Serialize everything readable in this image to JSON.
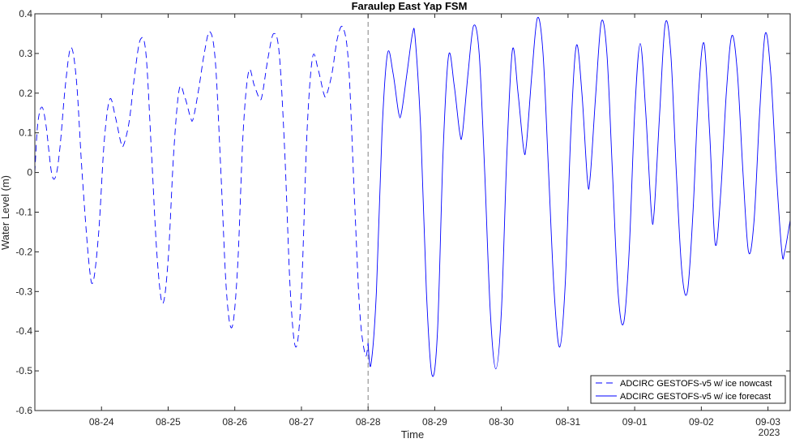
{
  "chart_data": {
    "type": "line",
    "title": "Faraulep East Yap FSM",
    "xlabel": "Time",
    "ylabel": "Water Level (m)",
    "ylim": [
      -0.6,
      0.4
    ],
    "xlim": [
      "2023-08-23 00:00",
      "2023-09-03 08:00"
    ],
    "yticks": [
      -0.6,
      -0.5,
      -0.4,
      -0.3,
      -0.2,
      -0.1,
      0,
      0.1,
      0.2,
      0.3,
      0.4
    ],
    "ytick_labels": [
      "-0.6",
      "-0.5",
      "-0.4",
      "-0.3",
      "-0.2",
      "-0.1",
      "0",
      "0.1",
      "0.2",
      "0.3",
      "0.4"
    ],
    "xticks": [
      "2023-08-24",
      "2023-08-25",
      "2023-08-26",
      "2023-08-27",
      "2023-08-28",
      "2023-08-29",
      "2023-08-30",
      "2023-08-31",
      "2023-09-01",
      "2023-09-02",
      "2023-09-03"
    ],
    "xtick_labels": [
      "08-24",
      "08-25",
      "08-26",
      "08-27",
      "08-28",
      "08-29",
      "08-30",
      "08-31",
      "09-01",
      "09-02",
      "09-03"
    ],
    "x_secondary_label": "2023",
    "nowcast_forecast_boundary": "2023-08-28 00:00",
    "grid": false,
    "legend_position": "bottom-right",
    "colors": {
      "series": "#0000ff",
      "boundary": "#808080",
      "axes": "#262626"
    },
    "series": [
      {
        "name": "ADCIRC GESTOFS-v5 w/ ice nowcast",
        "style": "dashed",
        "points": [
          [
            "2023-08-23 00:00",
            0.0
          ],
          [
            "2023-08-23 01:00",
            0.12
          ],
          [
            "2023-08-23 02:30",
            0.165
          ],
          [
            "2023-08-23 04:00",
            0.12
          ],
          [
            "2023-08-23 06:00",
            0.0
          ],
          [
            "2023-08-23 07:30",
            -0.01
          ],
          [
            "2023-08-23 09:00",
            0.06
          ],
          [
            "2023-08-23 11:00",
            0.22
          ],
          [
            "2023-08-23 13:00",
            0.315
          ],
          [
            "2023-08-23 15:00",
            0.23
          ],
          [
            "2023-08-23 17:00",
            0.0
          ],
          [
            "2023-08-23 19:30",
            -0.23
          ],
          [
            "2023-08-23 21:00",
            -0.275
          ],
          [
            "2023-08-23 23:00",
            -0.15
          ],
          [
            "2023-08-24 01:00",
            0.08
          ],
          [
            "2023-08-24 03:00",
            0.185
          ],
          [
            "2023-08-24 05:00",
            0.14
          ],
          [
            "2023-08-24 07:00",
            0.075
          ],
          [
            "2023-08-24 08:00",
            0.07
          ],
          [
            "2023-08-24 10:00",
            0.13
          ],
          [
            "2023-08-24 12:00",
            0.25
          ],
          [
            "2023-08-24 14:00",
            0.335
          ],
          [
            "2023-08-24 16:00",
            0.3
          ],
          [
            "2023-08-24 18:00",
            0.05
          ],
          [
            "2023-08-24 20:00",
            -0.21
          ],
          [
            "2023-08-24 22:00",
            -0.33
          ],
          [
            "2023-08-25 00:00",
            -0.22
          ],
          [
            "2023-08-25 02:00",
            0.05
          ],
          [
            "2023-08-25 04:00",
            0.21
          ],
          [
            "2023-08-25 06:00",
            0.19
          ],
          [
            "2023-08-25 08:00",
            0.14
          ],
          [
            "2023-08-25 09:00",
            0.135
          ],
          [
            "2023-08-25 11:00",
            0.21
          ],
          [
            "2023-08-25 13:00",
            0.3
          ],
          [
            "2023-08-25 15:00",
            0.355
          ],
          [
            "2023-08-25 17:00",
            0.28
          ],
          [
            "2023-08-25 19:00",
            0.0
          ],
          [
            "2023-08-25 21:00",
            -0.3
          ],
          [
            "2023-08-25 23:00",
            -0.39
          ],
          [
            "2023-08-26 01:00",
            -0.24
          ],
          [
            "2023-08-26 03:00",
            0.1
          ],
          [
            "2023-08-26 05:00",
            0.255
          ],
          [
            "2023-08-26 07:00",
            0.22
          ],
          [
            "2023-08-26 09:00",
            0.185
          ],
          [
            "2023-08-26 10:00",
            0.2
          ],
          [
            "2023-08-26 12:00",
            0.29
          ],
          [
            "2023-08-26 14:00",
            0.35
          ],
          [
            "2023-08-26 16:00",
            0.3
          ],
          [
            "2023-08-26 18:00",
            0.05
          ],
          [
            "2023-08-26 20:00",
            -0.3
          ],
          [
            "2023-08-26 22:00",
            -0.44
          ],
          [
            "2023-08-27 00:00",
            -0.3
          ],
          [
            "2023-08-27 02:00",
            0.1
          ],
          [
            "2023-08-27 04:00",
            0.29
          ],
          [
            "2023-08-27 06:00",
            0.26
          ],
          [
            "2023-08-27 08:00",
            0.2
          ],
          [
            "2023-08-27 09:00",
            0.195
          ],
          [
            "2023-08-27 11:00",
            0.25
          ],
          [
            "2023-08-27 13:00",
            0.34
          ],
          [
            "2023-08-27 15:00",
            0.365
          ],
          [
            "2023-08-27 17:00",
            0.27
          ],
          [
            "2023-08-27 19:00",
            -0.05
          ],
          [
            "2023-08-27 21:00",
            -0.35
          ],
          [
            "2023-08-27 23:00",
            -0.46
          ],
          [
            "2023-08-28 00:00",
            -0.43
          ]
        ]
      },
      {
        "name": "ADCIRC GESTOFS-v5 w/ ice forecast",
        "style": "solid",
        "points": [
          [
            "2023-08-28 00:00",
            -0.43
          ],
          [
            "2023-08-28 01:00",
            -0.485
          ],
          [
            "2023-08-28 03:00",
            -0.3
          ],
          [
            "2023-08-28 05:00",
            0.1
          ],
          [
            "2023-08-28 07:00",
            0.3
          ],
          [
            "2023-08-28 09:00",
            0.25
          ],
          [
            "2023-08-28 11:00",
            0.15
          ],
          [
            "2023-08-28 12:00",
            0.15
          ],
          [
            "2023-08-28 14:00",
            0.25
          ],
          [
            "2023-08-28 16:00",
            0.35
          ],
          [
            "2023-08-28 17:00",
            0.335
          ],
          [
            "2023-08-28 19:00",
            0.1
          ],
          [
            "2023-08-28 21:00",
            -0.3
          ],
          [
            "2023-08-28 23:00",
            -0.51
          ],
          [
            "2023-08-29 01:00",
            -0.4
          ],
          [
            "2023-08-29 03:00",
            0.05
          ],
          [
            "2023-08-29 05:00",
            0.295
          ],
          [
            "2023-08-29 07:00",
            0.22
          ],
          [
            "2023-08-29 09:00",
            0.1
          ],
          [
            "2023-08-29 10:00",
            0.1
          ],
          [
            "2023-08-29 12:00",
            0.25
          ],
          [
            "2023-08-29 14:00",
            0.37
          ],
          [
            "2023-08-29 16:00",
            0.3
          ],
          [
            "2023-08-29 18:00",
            0.0
          ],
          [
            "2023-08-29 20:00",
            -0.35
          ],
          [
            "2023-08-29 22:00",
            -0.495
          ],
          [
            "2023-08-30 00:00",
            -0.35
          ],
          [
            "2023-08-30 02:00",
            0.05
          ],
          [
            "2023-08-30 04:00",
            0.31
          ],
          [
            "2023-08-30 06:00",
            0.2
          ],
          [
            "2023-08-30 08:00",
            0.06
          ],
          [
            "2023-08-30 09:00",
            0.07
          ],
          [
            "2023-08-30 11:00",
            0.25
          ],
          [
            "2023-08-30 13:00",
            0.39
          ],
          [
            "2023-08-30 15:00",
            0.3
          ],
          [
            "2023-08-30 17:00",
            0.0
          ],
          [
            "2023-08-30 19:00",
            -0.3
          ],
          [
            "2023-08-30 21:00",
            -0.44
          ],
          [
            "2023-08-30 23:00",
            -0.28
          ],
          [
            "2023-08-31 01:00",
            0.1
          ],
          [
            "2023-08-31 03:00",
            0.32
          ],
          [
            "2023-08-31 05:00",
            0.2
          ],
          [
            "2023-08-31 07:00",
            -0.02
          ],
          [
            "2023-08-31 08:00",
            -0.01
          ],
          [
            "2023-08-31 10:00",
            0.2
          ],
          [
            "2023-08-31 12:00",
            0.38
          ],
          [
            "2023-08-31 14:00",
            0.3
          ],
          [
            "2023-08-31 16:00",
            0.0
          ],
          [
            "2023-08-31 18:00",
            -0.3
          ],
          [
            "2023-08-31 20:00",
            -0.38
          ],
          [
            "2023-08-31 22:00",
            -0.2
          ],
          [
            "2023-09-01 00:00",
            0.15
          ],
          [
            "2023-09-01 02:00",
            0.325
          ],
          [
            "2023-09-01 04:00",
            0.15
          ],
          [
            "2023-09-01 06:00",
            -0.1
          ],
          [
            "2023-09-01 07:00",
            -0.1
          ],
          [
            "2023-09-01 09:00",
            0.15
          ],
          [
            "2023-09-01 11:00",
            0.375
          ],
          [
            "2023-09-01 13:00",
            0.3
          ],
          [
            "2023-09-01 15:00",
            0.0
          ],
          [
            "2023-09-01 17:00",
            -0.25
          ],
          [
            "2023-09-01 19:00",
            -0.3
          ],
          [
            "2023-09-01 21:00",
            -0.1
          ],
          [
            "2023-09-01 23:00",
            0.2
          ],
          [
            "2023-09-02 01:00",
            0.325
          ],
          [
            "2023-09-02 03:00",
            0.1
          ],
          [
            "2023-09-02 05:00",
            -0.18
          ],
          [
            "2023-09-02 07:00",
            -0.05
          ],
          [
            "2023-09-02 09:00",
            0.2
          ],
          [
            "2023-09-02 11:00",
            0.345
          ],
          [
            "2023-09-02 13:00",
            0.25
          ],
          [
            "2023-09-02 15:00",
            0.0
          ],
          [
            "2023-09-02 17:00",
            -0.2
          ],
          [
            "2023-09-02 19:00",
            -0.12
          ],
          [
            "2023-09-02 21:00",
            0.15
          ],
          [
            "2023-09-02 23:00",
            0.35
          ],
          [
            "2023-09-03 01:00",
            0.25
          ],
          [
            "2023-09-03 03:00",
            0.0
          ],
          [
            "2023-09-03 05:00",
            -0.2
          ],
          [
            "2023-09-03 06:00",
            -0.2
          ],
          [
            "2023-09-03 08:00",
            -0.12
          ]
        ]
      }
    ]
  }
}
